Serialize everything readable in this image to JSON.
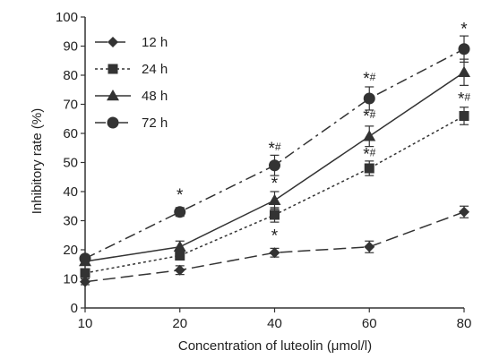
{
  "chart_data": {
    "type": "line",
    "xlabel": "Concentration of luteolin (μmol/l)",
    "ylabel": "Inhibitory rate (%)",
    "x": [
      10,
      20,
      40,
      60,
      80
    ],
    "x_tick_labels": [
      "10",
      "20",
      "40",
      "60",
      "80"
    ],
    "ylim": [
      0,
      100
    ],
    "y_ticks": [
      0,
      10,
      20,
      30,
      40,
      50,
      60,
      70,
      80,
      90,
      100
    ],
    "grid": false,
    "legend_position": "top-left",
    "series": [
      {
        "name": "12 h",
        "marker": "diamond",
        "dash": "long-dash",
        "values": [
          9,
          13,
          19,
          21,
          33
        ],
        "errors": [
          1.0,
          1.5,
          1.5,
          2.0,
          2.0
        ]
      },
      {
        "name": "24 h",
        "marker": "square",
        "dash": "dotted",
        "values": [
          12,
          18,
          32,
          48,
          66
        ],
        "errors": [
          1.0,
          1.5,
          2.5,
          2.5,
          3.0
        ]
      },
      {
        "name": "48 h",
        "marker": "triangle",
        "dash": "solid",
        "values": [
          16,
          21,
          37,
          59,
          81
        ],
        "errors": [
          1.0,
          2.0,
          3.0,
          3.5,
          4.5
        ]
      },
      {
        "name": "72 h",
        "marker": "circle",
        "dash": "dash-dot",
        "values": [
          17,
          33,
          49,
          72,
          89
        ],
        "errors": [
          1.0,
          1.5,
          3.5,
          4.0,
          4.5
        ]
      }
    ],
    "annotations": [
      {
        "text": "*",
        "x": 20,
        "y": 37
      },
      {
        "text": "*",
        "x": 40,
        "y": 23
      },
      {
        "text": "*",
        "x": 40,
        "y": 41
      },
      {
        "text": "*#",
        "x": 40,
        "y": 53
      },
      {
        "text": "*#",
        "x": 60,
        "y": 51
      },
      {
        "text": "*#",
        "x": 60,
        "y": 64
      },
      {
        "text": "*#",
        "x": 60,
        "y": 77
      },
      {
        "text": "*#",
        "x": 80,
        "y": 70
      },
      {
        "text": "*",
        "x": 80,
        "y": 94
      }
    ],
    "colors": {
      "series": "#333333",
      "axis": "#333333",
      "text": "#222222"
    }
  }
}
